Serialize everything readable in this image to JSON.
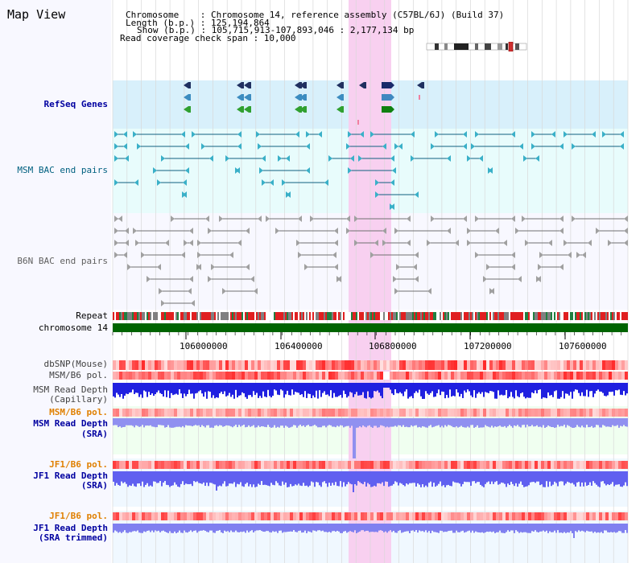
{
  "title": "Map View",
  "header": {
    "chromosome_label": "Chromosome    : Chromosome 14, reference assembly (C57BL/6J) (Build 37)",
    "length_label": "Length (b.p.) : 125,194,864",
    "show_label": "Show (b.p.) : 105,715,913-107,893,046 : 2,177,134 bp",
    "span_label": "Read coverage check span : 10,000"
  },
  "tracks": {
    "refseq": "RefSeq Genes",
    "msm_bac": "MSM BAC end pairs",
    "b6n_bac": "B6N BAC end pairs",
    "repeat": "Repeat",
    "chromosome": "chromosome 14",
    "dbsnp": "dbSNP(Mouse)",
    "msm_pol1": "MSM/B6 pol.",
    "msm_depth_cap_1": "MSM Read Depth",
    "msm_depth_cap_2": "(Capillary)",
    "msm_pol2": "MSM/B6 pol.",
    "msm_depth_sra_1": "MSM Read Depth",
    "msm_depth_sra_2": "(SRA)",
    "jf1_pol1": "JF1/B6 pol.",
    "jf1_depth_sra_1": "JF1 Read Depth",
    "jf1_depth_sra_2": "(SRA)",
    "jf1_pol2": "JF1/B6 pol.",
    "jf1_depth_trim_1": "JF1 Read Depth",
    "jf1_depth_trim_2": "(SRA trimmed)"
  },
  "axis": {
    "ticks": [
      "106000000",
      "106400000",
      "106800000",
      "107200000",
      "107600000"
    ]
  },
  "colors": {
    "blue_label": "#0000a0",
    "teal_label": "#006080",
    "orange_label": "#e08000",
    "highlight": "#f8d0f0",
    "chrom_bar": "#006400"
  }
}
